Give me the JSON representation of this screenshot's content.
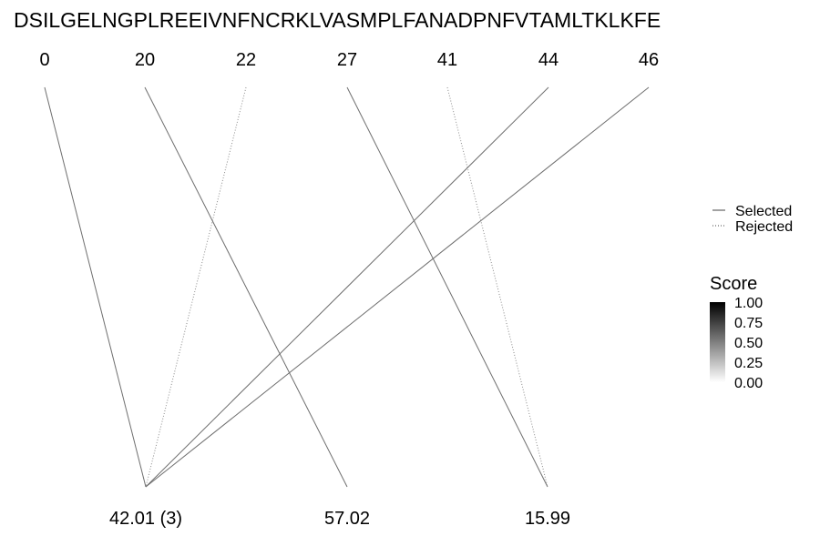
{
  "sequence": "DSILGELNGPLREEIVNFNCRKLVASMPLFANADPNFVTAMLTKLKFE",
  "positions": [
    "0",
    "20",
    "22",
    "27",
    "41",
    "44",
    "46"
  ],
  "masses": [
    "42.01 (3)",
    "57.02",
    "15.99"
  ],
  "links": [
    {
      "from": 0,
      "to": 0,
      "status": "selected",
      "color": "#6e6e6e"
    },
    {
      "from": 1,
      "to": 1,
      "status": "selected",
      "color": "#6e6e6e"
    },
    {
      "from": 2,
      "to": 0,
      "status": "rejected",
      "color": "#8a8a8a"
    },
    {
      "from": 3,
      "to": 2,
      "status": "selected",
      "color": "#6e6e6e"
    },
    {
      "from": 4,
      "to": 2,
      "status": "rejected",
      "color": "#8a8a8a"
    },
    {
      "from": 5,
      "to": 0,
      "status": "selected",
      "color": "#6e6e6e"
    },
    {
      "from": 6,
      "to": 0,
      "status": "selected",
      "color": "#6e6e6e"
    }
  ],
  "legend": {
    "linetype": {
      "items": [
        {
          "label": "Selected",
          "style": "solid"
        },
        {
          "label": "Rejected",
          "style": "dotted"
        }
      ]
    },
    "score": {
      "title": "Score",
      "ticks": [
        "1.00",
        "0.75",
        "0.50",
        "0.25",
        "0.00"
      ],
      "color_high": "#000000",
      "color_low": "#ffffff"
    }
  }
}
